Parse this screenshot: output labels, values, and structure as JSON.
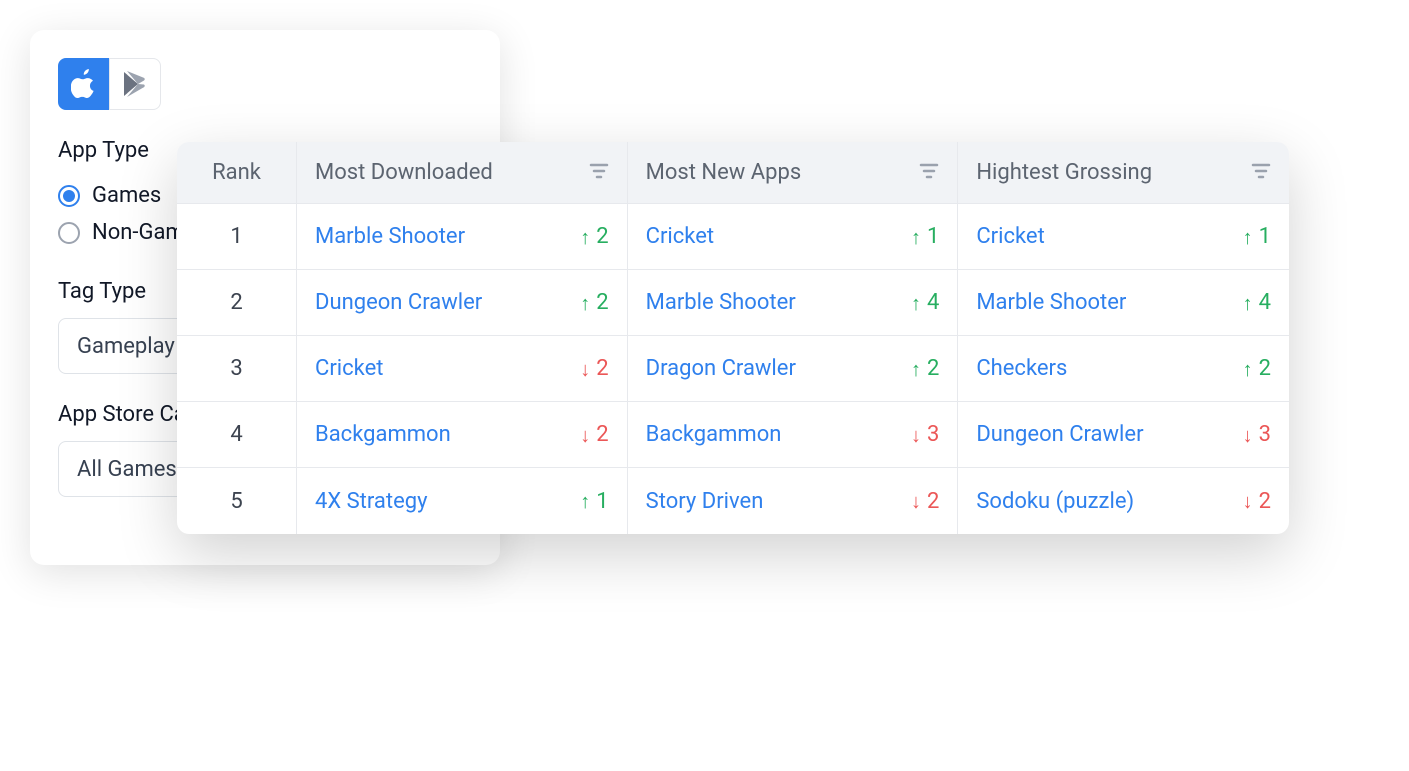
{
  "colors": {
    "accent": "#2f80ed",
    "up": "#27ae60",
    "down": "#eb5757",
    "header_bg": "#f1f3f6",
    "header_text": "#5c6470",
    "border": "#e7e9ed",
    "text": "#111827",
    "link": "#2f80ed"
  },
  "filter_panel": {
    "store_tabs": {
      "apple_active": true,
      "play_active": false
    },
    "app_type": {
      "label": "App Type",
      "options": [
        {
          "label": "Games",
          "checked": true
        },
        {
          "label": "Non-Games",
          "checked": false
        }
      ]
    },
    "tag_type": {
      "label": "Tag Type",
      "value": "Gameplay"
    },
    "app_store_category": {
      "label": "App Store Category",
      "value": "All Games"
    }
  },
  "rank_table": {
    "headers": {
      "rank": "Rank",
      "columns": [
        "Most Downloaded",
        "Most New Apps",
        "Hightest Grossing"
      ]
    },
    "rows": [
      {
        "rank": "1",
        "cells": [
          {
            "name": "Marble Shooter",
            "dir": "up",
            "delta": "2"
          },
          {
            "name": "Cricket",
            "dir": "up",
            "delta": "1"
          },
          {
            "name": "Cricket",
            "dir": "up",
            "delta": "1"
          }
        ]
      },
      {
        "rank": "2",
        "cells": [
          {
            "name": "Dungeon Crawler",
            "dir": "up",
            "delta": "2"
          },
          {
            "name": "Marble Shooter",
            "dir": "up",
            "delta": "4"
          },
          {
            "name": "Marble Shooter",
            "dir": "up",
            "delta": "4"
          }
        ]
      },
      {
        "rank": "3",
        "cells": [
          {
            "name": "Cricket",
            "dir": "down",
            "delta": "2"
          },
          {
            "name": "Dragon Crawler",
            "dir": "up",
            "delta": "2"
          },
          {
            "name": "Checkers",
            "dir": "up",
            "delta": "2"
          }
        ]
      },
      {
        "rank": "4",
        "cells": [
          {
            "name": "Backgammon",
            "dir": "down",
            "delta": "2"
          },
          {
            "name": "Backgammon",
            "dir": "down",
            "delta": "3"
          },
          {
            "name": "Dungeon Crawler",
            "dir": "down",
            "delta": "3"
          }
        ]
      },
      {
        "rank": "5",
        "cells": [
          {
            "name": "4X Strategy",
            "dir": "up",
            "delta": "1"
          },
          {
            "name": "Story Driven",
            "dir": "down",
            "delta": "2"
          },
          {
            "name": "Sodoku (puzzle)",
            "dir": "down",
            "delta": "2"
          }
        ]
      }
    ]
  }
}
